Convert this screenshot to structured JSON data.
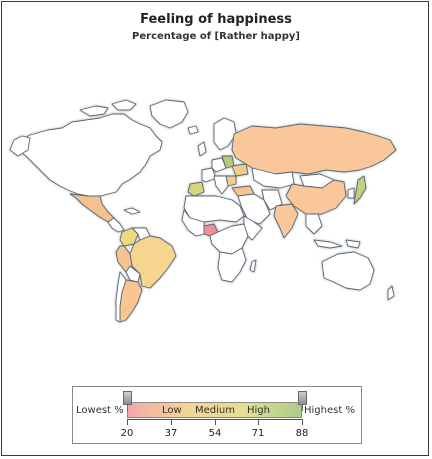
{
  "title": "Feeling of happiness",
  "subtitle": "Percentage of [Rather happy]",
  "map": {
    "ocean_color": "#ffffff",
    "land_color": "#ffffff",
    "border_color": "#5c6670",
    "shadow_color": "#b8bec4",
    "color_scale": [
      "#e89a9a",
      "#f3cc8c",
      "#e9dd82",
      "#9fc27a"
    ],
    "highlighted_countries": [
      {
        "name": "Russia",
        "color": "#f9c79a"
      },
      {
        "name": "China",
        "color": "#f9c79a"
      },
      {
        "name": "India",
        "color": "#f9c79a"
      },
      {
        "name": "Brazil",
        "color": "#f6d58f"
      },
      {
        "name": "Argentina",
        "color": "#f8c690"
      },
      {
        "name": "Mexico",
        "color": "#f7c08f"
      },
      {
        "name": "Peru",
        "color": "#f6c48f"
      },
      {
        "name": "Colombia",
        "color": "#f0d87e"
      },
      {
        "name": "Nigeria",
        "color": "#ef8f8f"
      },
      {
        "name": "Japan",
        "color": "#c2cf7c"
      },
      {
        "name": "Ukraine",
        "color": "#f3cc8c"
      },
      {
        "name": "Poland",
        "color": "#b6c97a"
      },
      {
        "name": "Spain",
        "color": "#d6d47c"
      },
      {
        "name": "Turkey",
        "color": "#f6c48f"
      },
      {
        "name": "Romania",
        "color": "#f3cc8c"
      }
    ]
  },
  "legend": {
    "low_end_label": "Lowest %",
    "high_end_label": "Highest %",
    "band_labels": [
      "Low",
      "Medium",
      "High"
    ],
    "ticks": [
      "20",
      "37",
      "54",
      "71",
      "88"
    ],
    "min": 20,
    "max": 88,
    "handle_low_value": 20,
    "handle_high_value": 88,
    "gradient": [
      "#f2a9a9",
      "#f4d396",
      "#e6de93",
      "#a9cd8a"
    ]
  }
}
